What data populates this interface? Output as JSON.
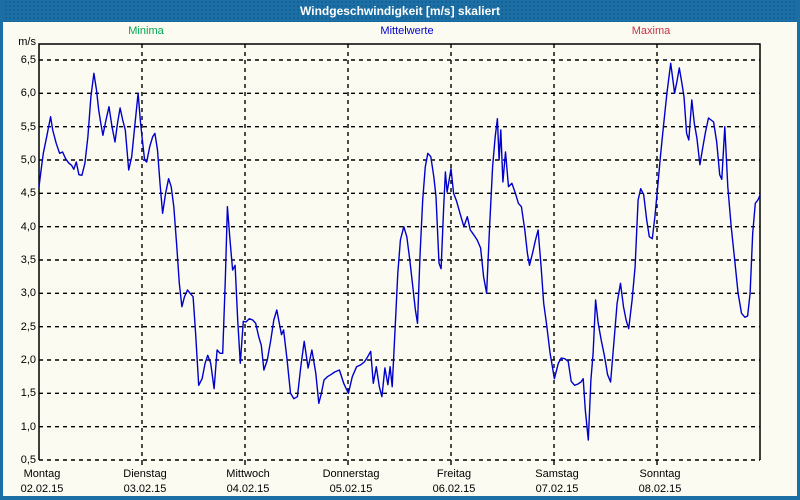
{
  "window": {
    "title": "Windgeschwindigkeit [m/s] skaliert"
  },
  "legend": {
    "items": [
      {
        "id": "minima",
        "label": "Minima",
        "color": "#00A651"
      },
      {
        "id": "mittelwerte",
        "label": "Mittelwerte",
        "color": "#0000CC"
      },
      {
        "id": "maxima",
        "label": "Maxima",
        "color": "#C43247"
      }
    ]
  },
  "chart_data": {
    "type": "line",
    "title": "Windgeschwindigkeit [m/s] skaliert",
    "ylabel": "m/s",
    "y_unit_label": "m/s",
    "ylim": [
      0.5,
      6.5
    ],
    "xlim_hours": [
      0,
      168
    ],
    "grid": true,
    "legend_position": "top",
    "yticks": [
      {
        "v": 0.5,
        "label": "0,5"
      },
      {
        "v": 1.0,
        "label": "1,0"
      },
      {
        "v": 1.5,
        "label": "1,5"
      },
      {
        "v": 2.0,
        "label": "2,0"
      },
      {
        "v": 2.5,
        "label": "2,5"
      },
      {
        "v": 3.0,
        "label": "3,0"
      },
      {
        "v": 3.5,
        "label": "3,5"
      },
      {
        "v": 4.0,
        "label": "4,0"
      },
      {
        "v": 4.5,
        "label": "4,5"
      },
      {
        "v": 5.0,
        "label": "5,0"
      },
      {
        "v": 5.5,
        "label": "5,5"
      },
      {
        "v": 6.0,
        "label": "6,0"
      },
      {
        "v": 6.5,
        "label": "6,5"
      }
    ],
    "days": [
      {
        "name": "Montag",
        "date": "02.02.15",
        "hour": 0
      },
      {
        "name": "Dienstag",
        "date": "03.02.15",
        "hour": 24
      },
      {
        "name": "Mittwoch",
        "date": "04.02.15",
        "hour": 48
      },
      {
        "name": "Donnerstag",
        "date": "05.02.15",
        "hour": 72
      },
      {
        "name": "Freitag",
        "date": "06.02.15",
        "hour": 96
      },
      {
        "name": "Samstag",
        "date": "07.02.15",
        "hour": 120
      },
      {
        "name": "Sonntag",
        "date": "08.02.15",
        "hour": 144
      }
    ],
    "series": [
      {
        "name": "Mittelwerte",
        "color": "#0000CC",
        "points": [
          [
            0,
            4.6
          ],
          [
            0.5,
            4.85
          ],
          [
            1,
            5.1
          ],
          [
            1.8,
            5.35
          ],
          [
            2.7,
            5.65
          ],
          [
            3.2,
            5.45
          ],
          [
            4,
            5.25
          ],
          [
            4.8,
            5.1
          ],
          [
            5.5,
            5.12
          ],
          [
            6.2,
            5.02
          ],
          [
            7,
            4.95
          ],
          [
            7.6,
            4.92
          ],
          [
            8.1,
            4.86
          ],
          [
            8.7,
            4.97
          ],
          [
            9.3,
            4.78
          ],
          [
            10,
            4.77
          ],
          [
            10.7,
            4.95
          ],
          [
            11.4,
            5.35
          ],
          [
            12.1,
            5.95
          ],
          [
            12.8,
            6.3
          ],
          [
            13.4,
            6.05
          ],
          [
            13.9,
            5.75
          ],
          [
            14.4,
            5.55
          ],
          [
            14.9,
            5.37
          ],
          [
            15.6,
            5.6
          ],
          [
            16.3,
            5.8
          ],
          [
            17,
            5.5
          ],
          [
            17.7,
            5.27
          ],
          [
            18.3,
            5.55
          ],
          [
            18.9,
            5.78
          ],
          [
            19.5,
            5.6
          ],
          [
            20.1,
            5.45
          ],
          [
            20.9,
            4.85
          ],
          [
            21.6,
            5.05
          ],
          [
            22.3,
            5.5
          ],
          [
            23.1,
            6.0
          ],
          [
            23.6,
            5.6
          ],
          [
            24,
            5.35
          ],
          [
            24.6,
            5.0
          ],
          [
            25.1,
            4.97
          ],
          [
            25.8,
            5.2
          ],
          [
            26.5,
            5.35
          ],
          [
            27,
            5.4
          ],
          [
            27.6,
            5.15
          ],
          [
            28.2,
            4.65
          ],
          [
            28.8,
            4.2
          ],
          [
            29.5,
            4.5
          ],
          [
            30.2,
            4.72
          ],
          [
            30.8,
            4.6
          ],
          [
            31.4,
            4.3
          ],
          [
            32.1,
            3.7
          ],
          [
            32.7,
            3.15
          ],
          [
            33.3,
            2.8
          ],
          [
            33.9,
            2.95
          ],
          [
            34.6,
            3.05
          ],
          [
            35.2,
            3.0
          ],
          [
            35.9,
            2.95
          ],
          [
            36.5,
            2.4
          ],
          [
            37.2,
            1.62
          ],
          [
            38,
            1.72
          ],
          [
            38.7,
            1.95
          ],
          [
            39.3,
            2.07
          ],
          [
            40,
            1.95
          ],
          [
            40.8,
            1.57
          ],
          [
            41.5,
            2.15
          ],
          [
            42.2,
            2.1
          ],
          [
            42.8,
            2.1
          ],
          [
            43.4,
            3.2
          ],
          [
            43.9,
            4.3
          ],
          [
            44.5,
            3.8
          ],
          [
            45.1,
            3.35
          ],
          [
            45.7,
            3.42
          ],
          [
            46.3,
            2.6
          ],
          [
            46.9,
            1.95
          ],
          [
            47.6,
            2.58
          ],
          [
            48.2,
            2.57
          ],
          [
            49,
            2.62
          ],
          [
            49.8,
            2.6
          ],
          [
            50.5,
            2.55
          ],
          [
            51.2,
            2.35
          ],
          [
            51.8,
            2.22
          ],
          [
            52.4,
            1.85
          ],
          [
            53.2,
            2.0
          ],
          [
            54,
            2.3
          ],
          [
            54.7,
            2.6
          ],
          [
            55.4,
            2.75
          ],
          [
            56,
            2.55
          ],
          [
            56.5,
            2.38
          ],
          [
            57,
            2.45
          ],
          [
            57.8,
            2.0
          ],
          [
            58.6,
            1.5
          ],
          [
            59.4,
            1.42
          ],
          [
            60.2,
            1.45
          ],
          [
            61,
            1.9
          ],
          [
            61.8,
            2.28
          ],
          [
            62.7,
            1.88
          ],
          [
            63.6,
            2.15
          ],
          [
            64.5,
            1.8
          ],
          [
            65.2,
            1.35
          ],
          [
            65.8,
            1.5
          ],
          [
            66.4,
            1.7
          ],
          [
            67.2,
            1.75
          ],
          [
            68,
            1.78
          ],
          [
            68.9,
            1.82
          ],
          [
            70,
            1.85
          ],
          [
            71,
            1.65
          ],
          [
            72.1,
            1.5
          ],
          [
            73,
            1.75
          ],
          [
            74,
            1.9
          ],
          [
            75,
            1.93
          ],
          [
            75.8,
            1.97
          ],
          [
            76.6,
            2.05
          ],
          [
            77.3,
            2.13
          ],
          [
            77.9,
            1.65
          ],
          [
            78.6,
            1.9
          ],
          [
            79.3,
            1.6
          ],
          [
            79.9,
            1.45
          ],
          [
            80.6,
            1.88
          ],
          [
            81.3,
            1.63
          ],
          [
            81.8,
            1.9
          ],
          [
            82.3,
            1.6
          ],
          [
            83,
            2.5
          ],
          [
            83.6,
            3.3
          ],
          [
            84.2,
            3.8
          ],
          [
            85,
            4.0
          ],
          [
            85.7,
            3.85
          ],
          [
            86.4,
            3.5
          ],
          [
            87.1,
            3.1
          ],
          [
            87.7,
            2.75
          ],
          [
            88.2,
            2.55
          ],
          [
            88.8,
            3.6
          ],
          [
            89.4,
            4.4
          ],
          [
            90,
            4.9
          ],
          [
            90.6,
            5.1
          ],
          [
            91.3,
            5.05
          ],
          [
            92,
            4.75
          ],
          [
            92.5,
            4.45
          ],
          [
            93.2,
            3.45
          ],
          [
            93.7,
            3.37
          ],
          [
            94.3,
            4.3
          ],
          [
            94.7,
            4.82
          ],
          [
            95.1,
            4.52
          ],
          [
            95.7,
            4.75
          ],
          [
            96,
            4.87
          ],
          [
            96.6,
            4.5
          ],
          [
            97.3,
            4.38
          ],
          [
            98.1,
            4.2
          ],
          [
            99,
            4.0
          ],
          [
            99.8,
            4.15
          ],
          [
            100.5,
            3.95
          ],
          [
            101.3,
            3.88
          ],
          [
            102.1,
            3.8
          ],
          [
            102.9,
            3.68
          ],
          [
            103.6,
            3.25
          ],
          [
            104.3,
            3.0
          ],
          [
            105,
            4.0
          ],
          [
            105.7,
            4.9
          ],
          [
            106.3,
            5.35
          ],
          [
            106.8,
            5.62
          ],
          [
            107.2,
            5.0
          ],
          [
            107.6,
            5.45
          ],
          [
            108.1,
            4.67
          ],
          [
            108.7,
            5.12
          ],
          [
            109.4,
            4.6
          ],
          [
            110.2,
            4.65
          ],
          [
            111,
            4.5
          ],
          [
            111.7,
            4.35
          ],
          [
            112.4,
            4.3
          ],
          [
            113.2,
            3.95
          ],
          [
            113.8,
            3.6
          ],
          [
            114.3,
            3.42
          ],
          [
            115,
            3.6
          ],
          [
            115.7,
            3.8
          ],
          [
            116.3,
            3.95
          ],
          [
            117,
            3.4
          ],
          [
            117.6,
            2.85
          ],
          [
            118.3,
            2.52
          ],
          [
            119.1,
            2.1
          ],
          [
            120.1,
            1.72
          ],
          [
            121,
            1.95
          ],
          [
            121.7,
            2.03
          ],
          [
            122.5,
            2.02
          ],
          [
            123.3,
            1.98
          ],
          [
            124,
            1.68
          ],
          [
            124.8,
            1.62
          ],
          [
            125.6,
            1.64
          ],
          [
            126.3,
            1.67
          ],
          [
            126.8,
            1.72
          ],
          [
            127.3,
            1.25
          ],
          [
            128,
            0.8
          ],
          [
            128.6,
            1.7
          ],
          [
            129.1,
            2.1
          ],
          [
            129.7,
            2.9
          ],
          [
            130.3,
            2.55
          ],
          [
            131,
            2.3
          ],
          [
            131.8,
            2.05
          ],
          [
            132.5,
            1.78
          ],
          [
            133.2,
            1.67
          ],
          [
            134,
            2.3
          ],
          [
            134.7,
            2.85
          ],
          [
            135.5,
            3.15
          ],
          [
            136.2,
            2.8
          ],
          [
            136.8,
            2.6
          ],
          [
            137.4,
            2.47
          ],
          [
            138.2,
            2.9
          ],
          [
            138.9,
            3.4
          ],
          [
            139.6,
            4.4
          ],
          [
            140.2,
            4.57
          ],
          [
            140.9,
            4.48
          ],
          [
            141.6,
            4.1
          ],
          [
            142.2,
            3.85
          ],
          [
            142.9,
            3.82
          ],
          [
            143.5,
            4.15
          ],
          [
            144.1,
            4.55
          ],
          [
            144.8,
            5.05
          ],
          [
            145.5,
            5.5
          ],
          [
            146.3,
            6.0
          ],
          [
            147.2,
            6.45
          ],
          [
            147.7,
            6.2
          ],
          [
            148.1,
            6.0
          ],
          [
            148.7,
            6.2
          ],
          [
            149.2,
            6.38
          ],
          [
            149.8,
            6.15
          ],
          [
            150.3,
            5.95
          ],
          [
            150.9,
            5.4
          ],
          [
            151.4,
            5.3
          ],
          [
            152.1,
            5.9
          ],
          [
            152.7,
            5.55
          ],
          [
            153.3,
            5.33
          ],
          [
            154,
            4.93
          ],
          [
            154.7,
            5.2
          ],
          [
            155.3,
            5.42
          ],
          [
            156,
            5.63
          ],
          [
            156.6,
            5.6
          ],
          [
            157.2,
            5.57
          ],
          [
            157.9,
            5.27
          ],
          [
            158.6,
            4.78
          ],
          [
            159.1,
            4.71
          ],
          [
            159.8,
            5.5
          ],
          [
            160.5,
            4.6
          ],
          [
            161.3,
            4.0
          ],
          [
            162.1,
            3.5
          ],
          [
            162.9,
            3.0
          ],
          [
            163.7,
            2.7
          ],
          [
            164.5,
            2.64
          ],
          [
            165.1,
            2.66
          ],
          [
            165.7,
            3.0
          ],
          [
            166.3,
            3.9
          ],
          [
            166.9,
            4.35
          ],
          [
            167.5,
            4.4
          ],
          [
            168,
            4.47
          ]
        ]
      }
    ]
  }
}
